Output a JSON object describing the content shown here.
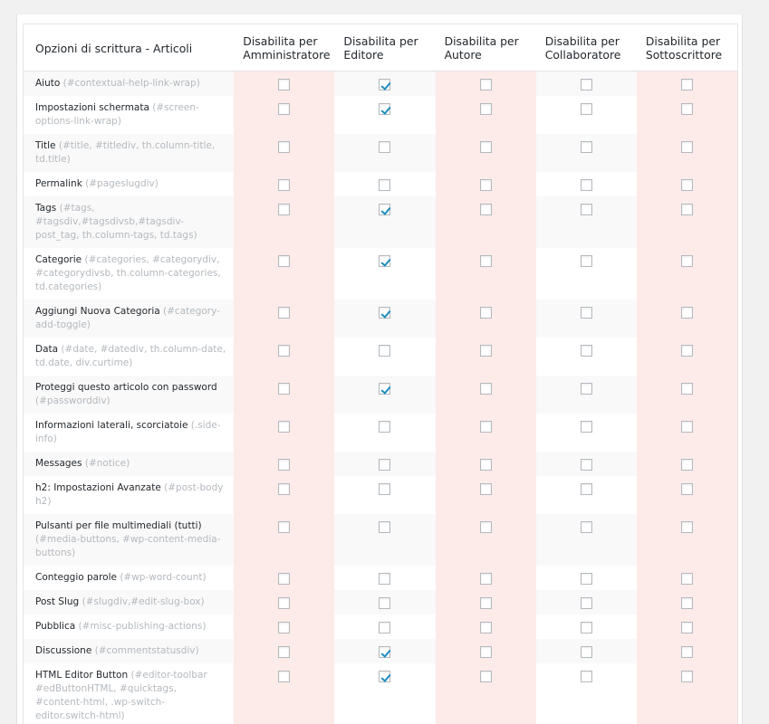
{
  "header": {
    "option_col": "Opzioni di scrittura - Articoli",
    "roles": [
      "Disabilita per Amministratore",
      "Disabilita per Editore",
      "Disabilita per Autore",
      "Disabilita per Collaboratore",
      "Disabilita per Sottoscrittore"
    ]
  },
  "rows": [
    {
      "label": "Aiuto",
      "selector": "(#contextual-help-link-wrap)",
      "checks": [
        false,
        true,
        false,
        false,
        false
      ]
    },
    {
      "label": "Impostazioni schermata",
      "selector": "(#screen-options-link-wrap)",
      "checks": [
        false,
        true,
        false,
        false,
        false
      ]
    },
    {
      "label": "Title",
      "selector": "(#title, #titlediv, th.column-title, td.title)",
      "checks": [
        false,
        false,
        false,
        false,
        false
      ]
    },
    {
      "label": "Permalink",
      "selector": "(#pageslugdiv)",
      "checks": [
        false,
        false,
        false,
        false,
        false
      ]
    },
    {
      "label": "Tags",
      "selector": "(#tags, #tagsdiv,#tagsdivsb,#tagsdiv-post_tag, th.column-tags, td.tags)",
      "checks": [
        false,
        true,
        false,
        false,
        false
      ]
    },
    {
      "label": "Categorie",
      "selector": "(#categories, #categorydiv, #categorydivsb, th.column-categories, td.categories)",
      "checks": [
        false,
        true,
        false,
        false,
        false
      ]
    },
    {
      "label": "Aggiungi Nuova Categoria",
      "selector": "(#category-add-toggle)",
      "checks": [
        false,
        true,
        false,
        false,
        false
      ]
    },
    {
      "label": "Data",
      "selector": "(#date, #datediv, th.column-date, td.date, div.curtime)",
      "checks": [
        false,
        false,
        false,
        false,
        false
      ]
    },
    {
      "label": "Proteggi questo articolo con password",
      "selector": "(#passworddiv)",
      "checks": [
        false,
        true,
        false,
        false,
        false
      ]
    },
    {
      "label": "Informazioni laterali, scorciatoie",
      "selector": "(.side-info)",
      "checks": [
        false,
        false,
        false,
        false,
        false
      ]
    },
    {
      "label": "Messages",
      "selector": "(#notice)",
      "checks": [
        false,
        false,
        false,
        false,
        false
      ]
    },
    {
      "label": "h2: Impostazioni Avanzate",
      "selector": "(#post-body h2)",
      "checks": [
        false,
        false,
        false,
        false,
        false
      ]
    },
    {
      "label": "Pulsanti per file multimediali (tutti)",
      "selector": "(#media-buttons, #wp-content-media-buttons)",
      "checks": [
        false,
        false,
        false,
        false,
        false
      ]
    },
    {
      "label": "Conteggio parole",
      "selector": "(#wp-word-count)",
      "checks": [
        false,
        false,
        false,
        false,
        false
      ]
    },
    {
      "label": "Post Slug",
      "selector": "(#slugdiv,#edit-slug-box)",
      "checks": [
        false,
        false,
        false,
        false,
        false
      ]
    },
    {
      "label": "Pubblica",
      "selector": "(#misc-publishing-actions)",
      "checks": [
        false,
        false,
        false,
        false,
        false
      ]
    },
    {
      "label": "Discussione",
      "selector": "(#commentstatusdiv)",
      "checks": [
        false,
        true,
        false,
        false,
        false
      ]
    },
    {
      "label": "HTML Editor Button",
      "selector": "(#editor-toolbar #edButtonHTML, #quicktags, #content-html, .wp-switch-editor.switch-html)",
      "checks": [
        false,
        true,
        false,
        false,
        false
      ]
    }
  ],
  "colors": {
    "pink_column": "#fdebe9",
    "check": "#1e8cbe",
    "selector_text": "#b4b9be"
  }
}
